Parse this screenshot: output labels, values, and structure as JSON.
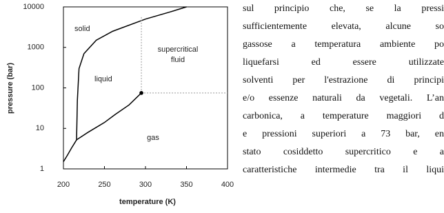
{
  "chart_data": {
    "type": "line",
    "xlabel": "temperature (K)",
    "ylabel": "pressure (bar)",
    "xlim": [
      200,
      400
    ],
    "xticks": [
      200,
      250,
      300,
      350,
      400
    ],
    "ylim": [
      1,
      10000
    ],
    "yticks": [
      1,
      10,
      100,
      1000,
      10000
    ],
    "log_y": true,
    "color": "#000000",
    "series": [
      {
        "style": "solid",
        "x": [
          200,
          205,
          210,
          216
        ],
        "y": [
          1.5,
          2.2,
          3.3,
          5.2
        ]
      },
      {
        "style": "solid",
        "x": [
          216,
          230,
          250,
          263,
          280,
          295
        ],
        "y": [
          5.2,
          8,
          14,
          22,
          38,
          75
        ]
      },
      {
        "style": "solid",
        "x": [
          216,
          217,
          219,
          225,
          240,
          260,
          300,
          330,
          350
        ],
        "y": [
          5.2,
          50,
          300,
          700,
          1500,
          2500,
          5000,
          7500,
          10000
        ]
      },
      {
        "style": "dotted",
        "x": [
          295,
          295
        ],
        "y": [
          75,
          6000
        ]
      },
      {
        "style": "dotted",
        "x": [
          295,
          400
        ],
        "y": [
          75,
          75
        ]
      }
    ],
    "points": {
      "x": [
        295
      ],
      "y": [
        75
      ]
    },
    "annotations": [
      "solid",
      "liquid",
      "supercritical",
      "fluid",
      "gas"
    ]
  },
  "text": {
    "lines": [
      "sul principio che, se la pressi",
      "sufficientemente elevata, alcune so",
      "gassose a temperatura ambiente po",
      "liquefarsi ed essere utilizzate",
      "solventi per l'estrazione di principi",
      "e/o essenze naturali da vegetali. L’an",
      "carbonica, a temperature maggiori d",
      "e pressioni superiori a 73 bar, en",
      "stato cosiddetto supercritico e a",
      "caratteristiche intermedie tra il liqui"
    ]
  }
}
